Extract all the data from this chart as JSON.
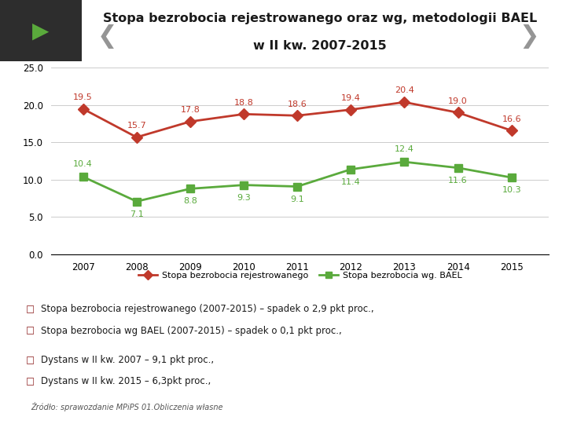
{
  "title_line1": "Stopa bezrobocia rejestrowanego oraz wg, metodologii BAEL",
  "title_line2": "w II kw. 2007-2015",
  "years": [
    2007,
    2008,
    2009,
    2010,
    2011,
    2012,
    2013,
    2014,
    2015
  ],
  "registered": [
    19.5,
    15.7,
    17.8,
    18.8,
    18.6,
    19.4,
    20.4,
    19.0,
    16.6
  ],
  "bael": [
    10.4,
    7.1,
    8.8,
    9.3,
    9.1,
    11.4,
    12.4,
    11.6,
    10.3
  ],
  "registered_color": "#c0392b",
  "bael_color": "#5aaa3c",
  "ylim": [
    0.0,
    25.0
  ],
  "yticks": [
    0.0,
    5.0,
    10.0,
    15.0,
    20.0,
    25.0
  ],
  "header_bg_color": "#8ab87a",
  "header_text_color": "#1a1a1a",
  "legend_registered": "Stopa bezrobocia rejestrowanego",
  "legend_bael": "Stopa bezrobocia wg. BAEL",
  "bullet_texts": [
    "Stopa bezrobocia rejestrowanego (2007-2015) – spadek o 2,9 pkt proc.,",
    "Stopa bezrobocia wg BAEL (2007-2015) – spadek o 0,1 pkt proc.,",
    "Dystans w II kw. 2007 – 9,1 pkt proc.,",
    "Dystans w II kw. 2015 – 6,3pkt proc.,"
  ],
  "source_text": "Źródło: sprawozdanie MPiPS 01.Obliczenia własne",
  "background_color": "#ffffff",
  "chart_bg": "#f5f5f5"
}
